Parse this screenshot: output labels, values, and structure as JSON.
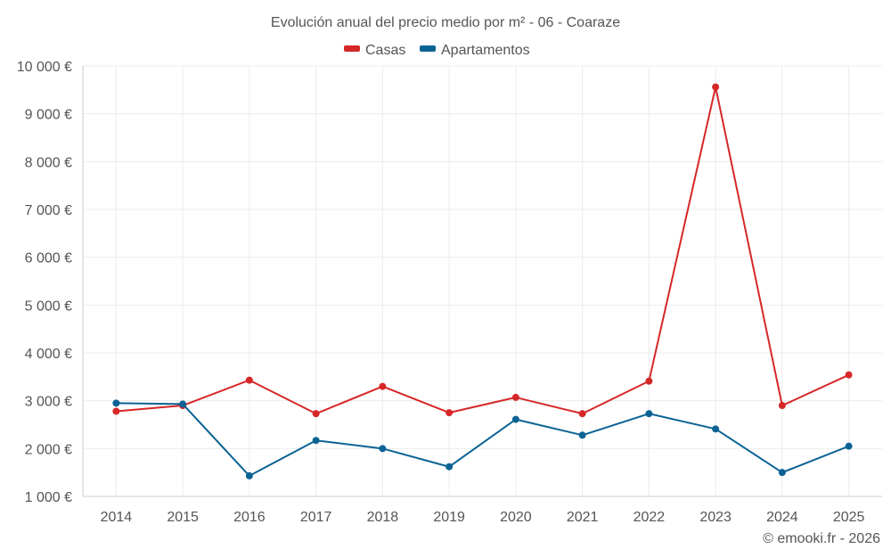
{
  "chart_data": {
    "type": "line",
    "title": "Evolución anual del precio medio por m² - 06 - Coaraze",
    "categories": [
      "2014",
      "2015",
      "2016",
      "2017",
      "2018",
      "2019",
      "2020",
      "2021",
      "2022",
      "2023",
      "2024",
      "2025"
    ],
    "series": [
      {
        "name": "Casas",
        "color": "#d62728",
        "values": [
          2780,
          2900,
          3430,
          2730,
          3300,
          2750,
          3070,
          2730,
          3410,
          9560,
          2900,
          3540
        ]
      },
      {
        "name": "Apartamentos",
        "color": "#0b6394",
        "values": [
          2950,
          2930,
          1430,
          2170,
          2000,
          1620,
          2610,
          2280,
          2730,
          2410,
          1500,
          2050
        ]
      }
    ],
    "ylim": [
      1000,
      10000
    ],
    "yticks": [
      1000,
      2000,
      3000,
      4000,
      5000,
      6000,
      7000,
      8000,
      9000,
      10000
    ],
    "ytick_labels": [
      "1 000 €",
      "2 000 €",
      "3 000 €",
      "4 000 €",
      "5 000 €",
      "6 000 €",
      "7 000 €",
      "8 000 €",
      "9 000 €",
      "10 000 €"
    ],
    "legend_position": "top-center",
    "grid": true
  },
  "credit": "© emooki.fr - 2026"
}
